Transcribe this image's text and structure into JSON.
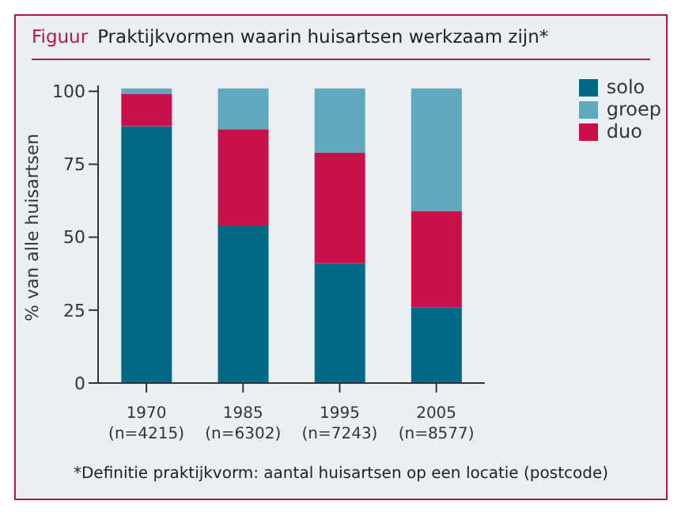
{
  "chart_data": {
    "type": "bar",
    "title": "Figuur",
    "subtitle": "Praktijkvormen waarin huisartsen werkzaam zijn*",
    "ylabel": "% van alle huisartsen",
    "categories": [
      "1970\n(n=4215)",
      "1985\n(n=6302)",
      "1995\n(n=7243)",
      "2005\n(n=8577)"
    ],
    "series": [
      {
        "name": "solo",
        "color": "#006a85",
        "values": [
          88,
          54,
          41,
          26
        ]
      },
      {
        "name": "duo",
        "color": "#c8104a",
        "values": [
          11,
          33,
          38,
          33
        ]
      },
      {
        "name": "groep",
        "color": "#5fa8bf",
        "values": [
          2,
          14,
          22,
          42
        ]
      }
    ],
    "stacked": true,
    "ylim": [
      0,
      102
    ],
    "yticks": [
      0,
      25,
      50,
      75,
      100
    ],
    "grid": false,
    "legend": "top right",
    "annotations": [
      "*Definitie praktijkvorm: aantal huisartsen op een locatie (postcode)"
    ]
  }
}
